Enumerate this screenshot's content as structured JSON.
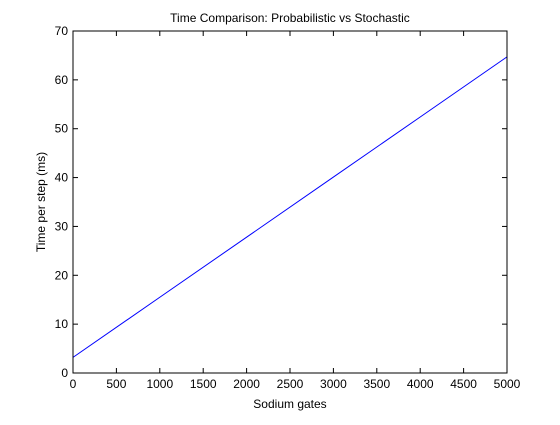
{
  "chart_data": {
    "type": "line",
    "title": "Time Comparison: Probabilistic vs Stochastic",
    "xlabel": "Sodium gates",
    "ylabel": "Time per step (ms)",
    "xlim": [
      0,
      5000
    ],
    "ylim": [
      0,
      70
    ],
    "xticks": [
      0,
      500,
      1000,
      1500,
      2000,
      2500,
      3000,
      3500,
      4000,
      4500,
      5000
    ],
    "yticks": [
      0,
      10,
      20,
      30,
      40,
      50,
      60,
      70
    ],
    "grid": false,
    "legend": "none",
    "series": [
      {
        "color": "#0000ff",
        "x": [
          0,
          1000,
          2000,
          3000,
          4000,
          5000
        ],
        "y": [
          3.2,
          15.5,
          27.8,
          40.1,
          52.4,
          64.7
        ]
      }
    ]
  }
}
